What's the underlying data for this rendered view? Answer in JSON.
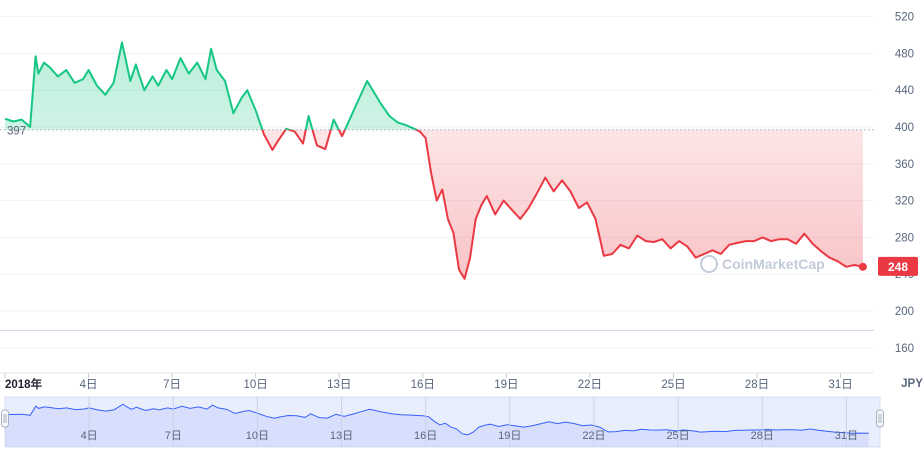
{
  "chart_data": {
    "type": "area",
    "baseline": 397,
    "baseline_label": "397",
    "current_value": 248,
    "current_label": "248",
    "currency": "JPY",
    "ylim": [
      150,
      525
    ],
    "y_ticks": [
      160,
      200,
      240,
      280,
      320,
      360,
      400,
      440,
      480,
      520
    ],
    "y_tick_labels": [
      "160",
      "200",
      "240",
      "280",
      "320",
      "360",
      "400",
      "440",
      "480",
      "520"
    ],
    "x_range": [
      1,
      32.2
    ],
    "x_ticks": [
      1,
      4,
      7,
      10,
      13,
      16,
      19,
      22,
      25,
      28,
      31
    ],
    "x_tick_labels": [
      "2018年",
      "4日",
      "7日",
      "10日",
      "13日",
      "16日",
      "19日",
      "22日",
      "25日",
      "28日",
      "31日"
    ],
    "grid": true,
    "watermark": "CoinMarketCap",
    "up_color": "#16c784",
    "down_color": "#ea3943",
    "navigator_color": "#3861fb",
    "series": [
      {
        "x": [
          1.0,
          1.3,
          1.6,
          1.9,
          2.1,
          2.2,
          2.4,
          2.6,
          2.9,
          3.2,
          3.5,
          3.8,
          4.0,
          4.3,
          4.6,
          4.9,
          5.2,
          5.5,
          5.7,
          5.8,
          6.0,
          6.3,
          6.5,
          6.8,
          7.0,
          7.3,
          7.6,
          7.9,
          8.2,
          8.4,
          8.6,
          8.9,
          9.2,
          9.5,
          9.7,
          10.0,
          10.3,
          10.6,
          10.8,
          11.1,
          11.4,
          11.7,
          11.9,
          12.2,
          12.5,
          12.8,
          13.1,
          13.4,
          13.7,
          14.0,
          14.2,
          14.5,
          14.8,
          15.1,
          15.4,
          15.7,
          15.9,
          16.1,
          16.3,
          16.5,
          16.7,
          16.9,
          17.1,
          17.3,
          17.5,
          17.7,
          17.9,
          18.1,
          18.3,
          18.6,
          18.9,
          19.2,
          19.5,
          19.8,
          20.1,
          20.4,
          20.7,
          21.0,
          21.3,
          21.6,
          21.9,
          22.2,
          22.5,
          22.8,
          23.1,
          23.4,
          23.7,
          24.0,
          24.3,
          24.6,
          24.9,
          25.2,
          25.5,
          25.8,
          26.1,
          26.4,
          26.7,
          27.0,
          27.3,
          27.6,
          27.9,
          28.2,
          28.5,
          28.8,
          29.1,
          29.4,
          29.7,
          30.0,
          30.3,
          30.6,
          30.9,
          31.2,
          31.5,
          31.8
        ],
        "y": [
          409,
          406,
          408,
          400,
          477,
          458,
          470,
          465,
          455,
          462,
          448,
          452,
          462,
          445,
          435,
          448,
          492,
          450,
          468,
          458,
          440,
          455,
          445,
          462,
          452,
          475,
          458,
          470,
          452,
          485,
          462,
          450,
          415,
          432,
          440,
          418,
          392,
          375,
          385,
          398,
          395,
          382,
          412,
          380,
          376,
          408,
          390,
          410,
          430,
          450,
          440,
          425,
          412,
          405,
          402,
          398,
          395,
          388,
          350,
          320,
          332,
          300,
          285,
          245,
          235,
          258,
          300,
          315,
          325,
          305,
          320,
          310,
          300,
          312,
          328,
          345,
          330,
          342,
          330,
          312,
          318,
          300,
          260,
          262,
          272,
          268,
          282,
          276,
          275,
          278,
          268,
          276,
          270,
          258,
          262,
          266,
          262,
          272,
          274,
          276,
          276,
          280,
          276,
          278,
          278,
          273,
          284,
          273,
          265,
          258,
          254,
          248,
          250,
          248
        ]
      }
    ]
  }
}
